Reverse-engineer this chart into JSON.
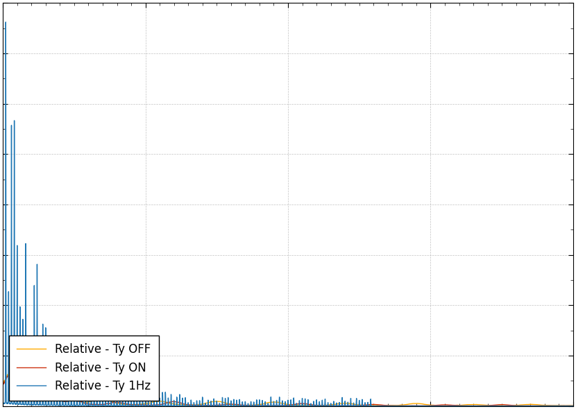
{
  "legend_labels": [
    "Relative - Ty 1Hz",
    "Relative - Ty ON",
    "Relative - Ty OFF"
  ],
  "colors_line": [
    "#1f77b4",
    "#cc3311",
    "#ffaa00"
  ],
  "linewidths": [
    1.0,
    1.0,
    1.0
  ],
  "background_color": "#ffffff",
  "legend_loc": "lower left",
  "figsize": [
    8.3,
    5.9
  ],
  "dpi": 100,
  "xlim": [
    0,
    200
  ],
  "xticks": [
    0,
    50,
    100,
    150,
    200
  ],
  "grid_color": "#bbbbbb",
  "grid_linestyle": "--",
  "grid_linewidth": 0.5
}
